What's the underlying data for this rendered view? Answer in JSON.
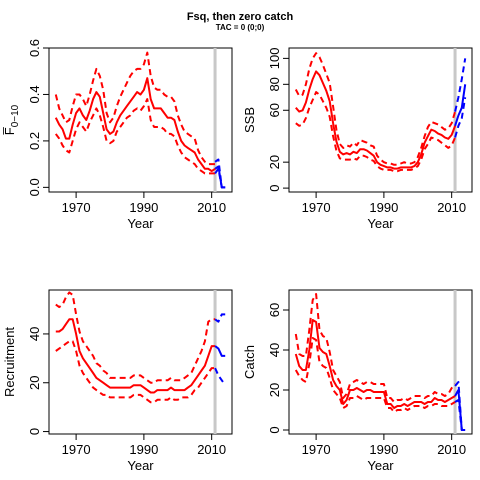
{
  "figure": {
    "title": "Fsq, then zero catch",
    "subtitle": "TAC = 0 (0;0)"
  },
  "colors": {
    "historic": "#ff0000",
    "projection": "#0000ff",
    "divider": "#c8c8c8",
    "frame": "#000000"
  },
  "chart_data": [
    {
      "type": "line",
      "id": "fbar",
      "xlabel": "Year",
      "ylabel": "F̅",
      "ylabel_sub": "0−10",
      "xlim": [
        1962,
        2016
      ],
      "ylim": [
        -0.02,
        0.6
      ],
      "xticks": [
        1970,
        1990,
        2010
      ],
      "yticks": [
        0.0,
        0.2,
        0.4,
        0.6
      ],
      "yticklabels": [
        "0.0",
        "0.2",
        "0.4",
        "0.6"
      ],
      "divider_x": 2011,
      "historic": {
        "x": [
          1964,
          1965,
          1966,
          1967,
          1968,
          1969,
          1970,
          1971,
          1972,
          1973,
          1974,
          1975,
          1976,
          1977,
          1978,
          1979,
          1980,
          1981,
          1982,
          1983,
          1984,
          1985,
          1986,
          1987,
          1988,
          1989,
          1990,
          1991,
          1992,
          1993,
          1994,
          1995,
          1996,
          1997,
          1998,
          1999,
          2000,
          2001,
          2002,
          2003,
          2004,
          2005,
          2006,
          2007,
          2008,
          2009,
          2010,
          2011
        ],
        "mid": [
          0.3,
          0.27,
          0.25,
          0.21,
          0.21,
          0.27,
          0.32,
          0.34,
          0.31,
          0.29,
          0.33,
          0.38,
          0.41,
          0.39,
          0.32,
          0.25,
          0.23,
          0.24,
          0.28,
          0.31,
          0.33,
          0.35,
          0.37,
          0.39,
          0.41,
          0.4,
          0.42,
          0.47,
          0.38,
          0.34,
          0.34,
          0.34,
          0.32,
          0.3,
          0.3,
          0.29,
          0.24,
          0.2,
          0.18,
          0.17,
          0.16,
          0.15,
          0.12,
          0.1,
          0.08,
          0.08,
          0.07,
          0.08
        ],
        "lower": [
          0.23,
          0.21,
          0.18,
          0.16,
          0.15,
          0.2,
          0.25,
          0.28,
          0.26,
          0.24,
          0.28,
          0.31,
          0.34,
          0.31,
          0.26,
          0.2,
          0.19,
          0.2,
          0.24,
          0.26,
          0.28,
          0.3,
          0.31,
          0.33,
          0.34,
          0.33,
          0.35,
          0.38,
          0.29,
          0.26,
          0.26,
          0.26,
          0.25,
          0.23,
          0.23,
          0.22,
          0.18,
          0.15,
          0.13,
          0.12,
          0.11,
          0.1,
          0.08,
          0.07,
          0.06,
          0.06,
          0.06,
          0.06
        ],
        "upper": [
          0.4,
          0.34,
          0.31,
          0.28,
          0.29,
          0.35,
          0.4,
          0.4,
          0.38,
          0.35,
          0.4,
          0.46,
          0.51,
          0.48,
          0.42,
          0.32,
          0.28,
          0.3,
          0.35,
          0.39,
          0.42,
          0.45,
          0.48,
          0.5,
          0.51,
          0.51,
          0.53,
          0.58,
          0.48,
          0.43,
          0.42,
          0.42,
          0.4,
          0.39,
          0.39,
          0.37,
          0.31,
          0.27,
          0.24,
          0.23,
          0.22,
          0.21,
          0.16,
          0.13,
          0.11,
          0.1,
          0.1,
          0.1
        ]
      },
      "projection": {
        "x": [
          2011,
          2012,
          2013,
          2014
        ],
        "mid": [
          0.08,
          0.09,
          0.0,
          0.0
        ],
        "lower": [
          0.06,
          0.08,
          0.0,
          0.0
        ],
        "upper": [
          0.11,
          0.12,
          0.0,
          0.0
        ]
      }
    },
    {
      "type": "line",
      "id": "ssb",
      "xlabel": "Year",
      "ylabel": "SSB",
      "xlim": [
        1962,
        2016
      ],
      "ylim": [
        -3,
        108
      ],
      "xticks": [
        1970,
        1990,
        2010
      ],
      "yticks": [
        0,
        20,
        60,
        80,
        100
      ],
      "yticklabels": [
        "0",
        "20",
        "60",
        "80",
        "100"
      ],
      "divider_x": 2011,
      "historic": {
        "x": [
          1964,
          1965,
          1966,
          1967,
          1968,
          1969,
          1970,
          1971,
          1972,
          1973,
          1974,
          1975,
          1976,
          1977,
          1978,
          1979,
          1980,
          1981,
          1982,
          1983,
          1984,
          1985,
          1986,
          1987,
          1988,
          1989,
          1990,
          1991,
          1992,
          1993,
          1994,
          1995,
          1996,
          1997,
          1998,
          1999,
          2000,
          2001,
          2002,
          2003,
          2004,
          2005,
          2006,
          2007,
          2008,
          2009,
          2010,
          2011
        ],
        "mid": [
          62,
          59,
          60,
          66,
          76,
          84,
          90,
          87,
          81,
          75,
          67,
          50,
          36,
          28,
          26,
          27,
          26,
          28,
          27,
          30,
          30,
          29,
          27,
          25,
          20,
          18,
          17,
          16,
          16,
          15,
          15,
          16,
          16,
          16,
          16,
          17,
          20,
          26,
          35,
          40,
          45,
          44,
          42,
          41,
          39,
          38,
          41,
          48
        ],
        "lower": [
          50,
          48,
          49,
          54,
          62,
          68,
          74,
          72,
          67,
          62,
          55,
          40,
          29,
          23,
          22,
          22,
          22,
          23,
          22,
          25,
          25,
          24,
          22,
          21,
          17,
          15,
          14,
          14,
          14,
          13,
          13,
          14,
          14,
          14,
          14,
          15,
          17,
          22,
          30,
          34,
          39,
          38,
          37,
          35,
          33,
          31,
          33,
          39
        ],
        "upper": [
          76,
          71,
          72,
          80,
          92,
          100,
          104,
          101,
          95,
          88,
          81,
          63,
          45,
          34,
          31,
          33,
          32,
          35,
          33,
          37,
          36,
          35,
          33,
          32,
          25,
          22,
          20,
          19,
          19,
          18,
          18,
          19,
          20,
          19,
          19,
          20,
          24,
          31,
          40,
          47,
          51,
          50,
          49,
          47,
          45,
          46,
          50,
          59
        ]
      },
      "projection": {
        "x": [
          2011,
          2012,
          2013,
          2014
        ],
        "mid": [
          48,
          56,
          62,
          80
        ],
        "lower": [
          39,
          48,
          54,
          70
        ],
        "upper": [
          59,
          70,
          84,
          100
        ]
      }
    },
    {
      "type": "line",
      "id": "recruitment",
      "xlabel": "Year",
      "ylabel": "Recruitment",
      "xlim": [
        1962,
        2016
      ],
      "ylim": [
        -1,
        58
      ],
      "xticks": [
        1970,
        1990,
        2010
      ],
      "yticks": [
        0,
        20,
        40
      ],
      "yticklabels": [
        "0",
        "20",
        "40"
      ],
      "divider_x": 2011,
      "historic": {
        "x": [
          1964,
          1965,
          1966,
          1967,
          1968,
          1969,
          1970,
          1971,
          1972,
          1973,
          1974,
          1975,
          1976,
          1977,
          1978,
          1979,
          1980,
          1981,
          1982,
          1983,
          1984,
          1985,
          1986,
          1987,
          1988,
          1989,
          1990,
          1991,
          1992,
          1993,
          1994,
          1995,
          1996,
          1997,
          1998,
          1999,
          2000,
          2001,
          2002,
          2003,
          2004,
          2005,
          2006,
          2007,
          2008,
          2009,
          2010,
          2011
        ],
        "mid": [
          41,
          41,
          42,
          44,
          46,
          46,
          40,
          33,
          30,
          28,
          26,
          24,
          22,
          21,
          20,
          19,
          18,
          18,
          18,
          18,
          18,
          18,
          18,
          19,
          19,
          19,
          18,
          17,
          16,
          16,
          17,
          17,
          17,
          17,
          18,
          17,
          17,
          17,
          17,
          18,
          19,
          21,
          23,
          25,
          27,
          31,
          35,
          35
        ],
        "lower": [
          33,
          34,
          35,
          36,
          37,
          37,
          33,
          27,
          24,
          22,
          20,
          18,
          17,
          16,
          15,
          15,
          14,
          14,
          14,
          14,
          14,
          14,
          14,
          15,
          15,
          15,
          14,
          13,
          12,
          12,
          13,
          13,
          13,
          13,
          14,
          13,
          13,
          14,
          14,
          14,
          15,
          17,
          18,
          20,
          22,
          24,
          26,
          26
        ],
        "upper": [
          52,
          51,
          52,
          55,
          57,
          56,
          48,
          41,
          37,
          35,
          33,
          31,
          28,
          27,
          25,
          24,
          22,
          22,
          22,
          22,
          22,
          22,
          22,
          23,
          23,
          23,
          22,
          21,
          20,
          20,
          21,
          21,
          21,
          21,
          22,
          21,
          21,
          21,
          22,
          23,
          24,
          27,
          30,
          33,
          37,
          45,
          46,
          46
        ]
      },
      "projection": {
        "x": [
          2011,
          2012,
          2013,
          2014
        ],
        "mid": [
          35,
          34,
          31,
          31
        ],
        "lower": [
          26,
          23,
          21,
          19
        ],
        "upper": [
          46,
          45,
          48,
          48
        ]
      }
    },
    {
      "type": "line",
      "id": "catch",
      "xlabel": "Year",
      "ylabel": "Catch",
      "xlim": [
        1962,
        2016
      ],
      "ylim": [
        -2,
        70
      ],
      "xticks": [
        1970,
        1990,
        2010
      ],
      "yticks": [
        0,
        20,
        40,
        60
      ],
      "yticklabels": [
        "0",
        "20",
        "40",
        "60"
      ],
      "divider_x": 2011,
      "historic": {
        "x": [
          1964,
          1965,
          1966,
          1967,
          1968,
          1969,
          1970,
          1971,
          1972,
          1973,
          1974,
          1975,
          1976,
          1977,
          1978,
          1979,
          1980,
          1981,
          1982,
          1983,
          1984,
          1985,
          1986,
          1987,
          1988,
          1989,
          1990,
          1991,
          1992,
          1993,
          1994,
          1995,
          1996,
          1997,
          1998,
          1999,
          2000,
          2001,
          2002,
          2003,
          2004,
          2005,
          2006,
          2007,
          2008,
          2009,
          2010,
          2011
        ],
        "mid": [
          38,
          32,
          30,
          30,
          40,
          55,
          54,
          41,
          39,
          38,
          32,
          25,
          22,
          20,
          13,
          15,
          20,
          20,
          21,
          20,
          19,
          20,
          20,
          19,
          19,
          19,
          19,
          13,
          13,
          11,
          12,
          12,
          13,
          12,
          13,
          14,
          14,
          14,
          13,
          14,
          14,
          16,
          15,
          15,
          14,
          15,
          16,
          17
        ],
        "lower": [
          30,
          27,
          25,
          24,
          33,
          46,
          45,
          34,
          32,
          31,
          26,
          20,
          18,
          16,
          11,
          12,
          16,
          16,
          17,
          16,
          15,
          16,
          16,
          16,
          16,
          16,
          16,
          11,
          11,
          9,
          10,
          10,
          11,
          10,
          11,
          12,
          12,
          12,
          11,
          12,
          12,
          13,
          13,
          12,
          12,
          12,
          13,
          14
        ],
        "upper": [
          48,
          38,
          37,
          37,
          50,
          65,
          68,
          50,
          47,
          46,
          39,
          30,
          27,
          24,
          16,
          18,
          23,
          24,
          25,
          24,
          23,
          24,
          24,
          23,
          23,
          23,
          23,
          16,
          16,
          14,
          15,
          15,
          16,
          15,
          16,
          17,
          17,
          17,
          16,
          17,
          17,
          19,
          18,
          18,
          17,
          18,
          21,
          23
        ]
      },
      "projection": {
        "x": [
          2011,
          2012,
          2013,
          2014
        ],
        "mid": [
          17,
          20,
          0,
          0
        ],
        "lower": [
          14,
          15,
          0,
          0
        ],
        "upper": [
          22,
          24,
          0,
          0
        ]
      }
    }
  ]
}
